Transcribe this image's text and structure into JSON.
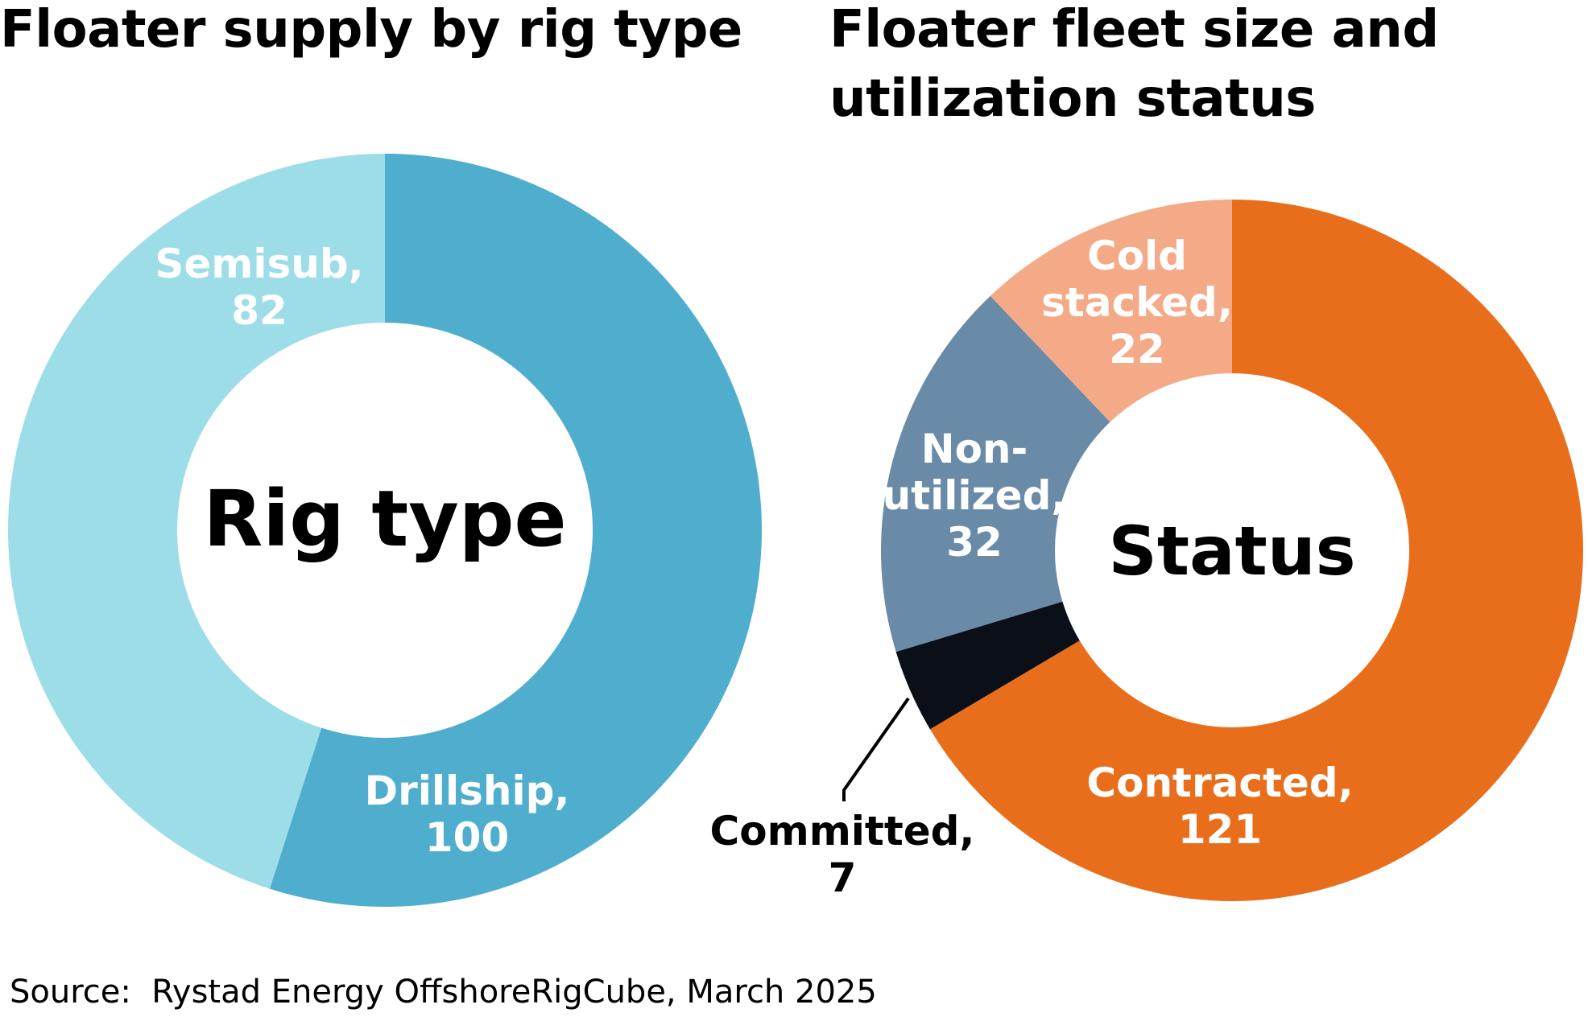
{
  "chart_data": [
    {
      "type": "pie",
      "title": "Floater supply by rig type",
      "center_label": "Rig type",
      "slices": [
        {
          "label": "Drillship,",
          "value": 100,
          "color": "#4FAECE"
        },
        {
          "label": "Semisub,",
          "value": 82,
          "color": "#9DDDE8"
        }
      ]
    },
    {
      "type": "pie",
      "title": "Floater fleet size and utilization status",
      "center_label": "Status",
      "slices": [
        {
          "label": "Contracted,",
          "value": 121,
          "color": "#E86E1C"
        },
        {
          "label": "Committed,",
          "value": 7,
          "color": "#0B0F17"
        },
        {
          "label": "Non-utilized,",
          "value": 32,
          "color": "#6A8BA8"
        },
        {
          "label": "Cold stacked,",
          "value": 22,
          "color": "#F4A987"
        }
      ]
    }
  ],
  "source": "Source:  Rystad Energy OffshoreRigCube, March 2025"
}
